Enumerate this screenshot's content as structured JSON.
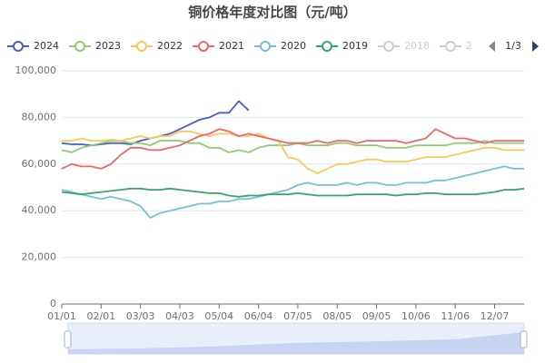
{
  "chart_data": {
    "type": "line",
    "title": "铜价格年度对比图（元/吨）",
    "categories": [
      "01/01",
      null,
      null,
      null,
      "02/01",
      null,
      null,
      null,
      "03/03",
      null,
      null,
      null,
      "04/03",
      null,
      null,
      null,
      "05/04",
      null,
      null,
      null,
      "06/04",
      null,
      null,
      null,
      "07/05",
      null,
      null,
      null,
      "08/05",
      null,
      null,
      null,
      "09/05",
      null,
      null,
      null,
      "10/06",
      null,
      null,
      null,
      "11/06",
      null,
      null,
      null,
      "12/07",
      null,
      null,
      null
    ],
    "series": [
      {
        "name": "2024",
        "color": "#4a5fc1",
        "values": [
          69000,
          68500,
          68500,
          68000,
          68500,
          69000,
          69000,
          68500,
          70000,
          71000,
          72000,
          73000,
          75000,
          77000,
          79000,
          80000,
          82000,
          82000,
          87000,
          83000,
          null,
          null,
          null,
          null,
          null,
          null,
          null,
          null,
          null,
          null,
          null,
          null,
          null,
          null,
          null,
          null,
          null,
          null,
          null,
          null,
          null,
          null,
          null,
          null,
          null,
          null,
          null,
          null
        ]
      },
      {
        "name": "2023",
        "color": "#91cc75",
        "values": [
          66000,
          65000,
          67000,
          68000,
          69000,
          70000,
          70000,
          69000,
          69000,
          68000,
          70000,
          70000,
          70000,
          69000,
          69000,
          67000,
          67000,
          65000,
          66000,
          65000,
          67000,
          68000,
          68000,
          68000,
          69000,
          68000,
          68000,
          68000,
          69000,
          69000,
          68000,
          68000,
          68000,
          67000,
          67000,
          67000,
          68000,
          68000,
          68000,
          68000,
          69000,
          69000,
          69000,
          70000,
          69000,
          69000,
          69000,
          69000
        ]
      },
      {
        "name": "2022",
        "color": "#fac858",
        "values": [
          70000,
          70000,
          71000,
          70000,
          70000,
          70500,
          70000,
          71000,
          72000,
          71000,
          72000,
          72000,
          74000,
          74000,
          73000,
          72000,
          73000,
          73000,
          72000,
          72000,
          73000,
          71000,
          70000,
          63000,
          62000,
          58000,
          56000,
          58000,
          60000,
          60000,
          61000,
          62000,
          62000,
          61000,
          61000,
          61000,
          62000,
          63000,
          63000,
          63000,
          64000,
          65000,
          66000,
          67000,
          67000,
          66000,
          66000,
          66000
        ]
      },
      {
        "name": "2021",
        "color": "#ee6666",
        "values": [
          58000,
          60000,
          59000,
          59000,
          58000,
          60000,
          64000,
          67000,
          67000,
          66000,
          66000,
          67000,
          68000,
          70000,
          72000,
          73000,
          75000,
          74000,
          72000,
          73000,
          72000,
          71000,
          70000,
          69000,
          69000,
          69000,
          70000,
          69000,
          70000,
          70000,
          69000,
          70000,
          70000,
          70000,
          70000,
          69000,
          70000,
          71000,
          75000,
          73000,
          71000,
          71000,
          70000,
          69000,
          70000,
          70000,
          70000,
          70000
        ]
      },
      {
        "name": "2020",
        "color": "#73c0de",
        "values": [
          49000,
          48000,
          47000,
          46000,
          45000,
          46000,
          45000,
          44000,
          42000,
          37000,
          39000,
          40000,
          41000,
          42000,
          43000,
          43000,
          44000,
          44000,
          45000,
          45000,
          46000,
          47000,
          48000,
          49000,
          51000,
          52000,
          51000,
          51000,
          51000,
          52000,
          51000,
          52000,
          52000,
          51000,
          51000,
          52000,
          52000,
          52000,
          53000,
          53000,
          54000,
          55000,
          56000,
          57000,
          58000,
          59000,
          58000,
          58000
        ]
      },
      {
        "name": "2019",
        "color": "#3ba272",
        "values": [
          48000,
          47500,
          47000,
          47500,
          48000,
          48500,
          49000,
          49500,
          49500,
          49000,
          49000,
          49500,
          49000,
          48500,
          48000,
          47500,
          47500,
          46500,
          46000,
          46500,
          46500,
          47000,
          47000,
          47000,
          47500,
          47000,
          46500,
          46500,
          46500,
          46500,
          47000,
          47000,
          47000,
          47000,
          46500,
          47000,
          47000,
          47500,
          47500,
          47000,
          47000,
          47000,
          47000,
          47500,
          48000,
          49000,
          49000,
          49500
        ]
      }
    ],
    "legend_hidden": [
      "2018",
      "2"
    ],
    "legend_page": "1/3",
    "ylim": [
      0,
      100000
    ],
    "yticks": [
      0,
      {
        "value": 20000,
        "label": "20,000"
      },
      {
        "value": 40000,
        "label": "40,000"
      },
      {
        "value": 60000,
        "label": "60,000"
      },
      {
        "value": 80000,
        "label": "80,000"
      },
      {
        "value": 100000,
        "label": "100,000"
      }
    ],
    "grid": true
  }
}
